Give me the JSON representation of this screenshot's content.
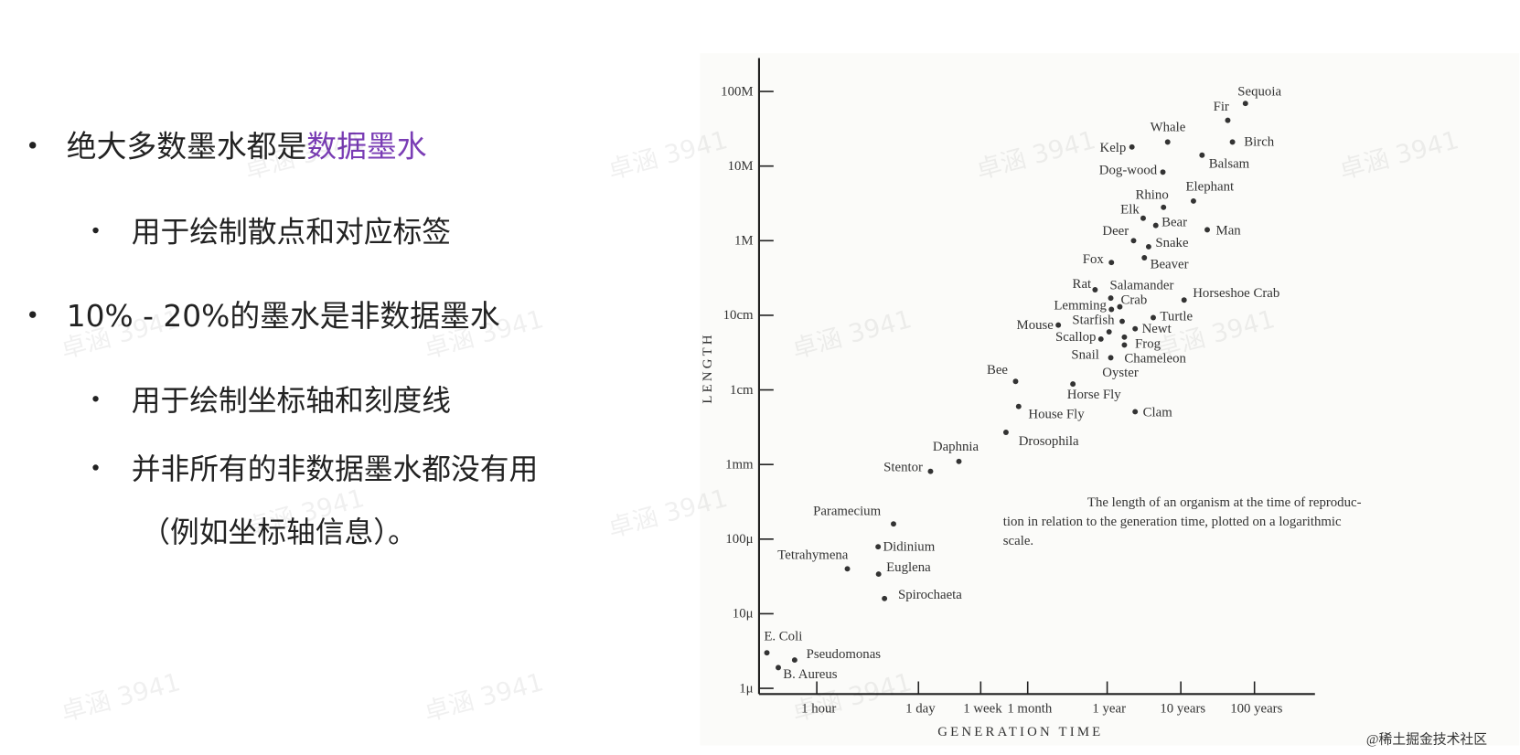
{
  "bullets": [
    {
      "text": "绝大多数墨水都是",
      "highlight": "数据墨水",
      "sub": [
        [
          "用于绘制散点和对应标签"
        ]
      ]
    },
    {
      "text": "10% - 20%的墨水是非数据墨水",
      "sub": [
        [
          "用于绘制坐标轴和刻度线"
        ],
        [
          "并非所有的非数据墨水都没有用",
          "（例如坐标轴信息）。"
        ]
      ]
    }
  ],
  "chart_data": {
    "type": "scatter",
    "y_label": "LENGTH",
    "x_label": "GENERATION TIME",
    "caption": [
      "The length of an organism at the time of reproduc-",
      "tion in relation to the generation time, plotted on a logarithmic",
      "scale."
    ],
    "log_x": true,
    "log_y": true,
    "color": "#333333",
    "xlim": [
      0.15,
      5800000
    ],
    "ylim": [
      8.4e-07,
      280
    ],
    "xticks": [
      {
        "value": 1,
        "label": "1 hour"
      },
      {
        "value": 24,
        "label": "1 day"
      },
      {
        "value": 168,
        "label": "1 week"
      },
      {
        "value": 730,
        "label": "1 month"
      },
      {
        "value": 8760,
        "label": "1 year"
      },
      {
        "value": 87600,
        "label": "10 years"
      },
      {
        "value": 876000,
        "label": "100 years"
      }
    ],
    "yticks": [
      {
        "value": 1e-06,
        "label": "1μ"
      },
      {
        "value": 1e-05,
        "label": "10μ"
      },
      {
        "value": 0.0001,
        "label": "100μ"
      },
      {
        "value": 0.001,
        "label": "1mm"
      },
      {
        "value": 0.01,
        "label": "1cm"
      },
      {
        "value": 0.1,
        "label": "10cm"
      },
      {
        "value": 1,
        "label": "1M"
      },
      {
        "value": 10,
        "label": "10M"
      },
      {
        "value": 100,
        "label": "100M"
      }
    ],
    "labels": [
      "Sequoia",
      "Fir",
      "Birch",
      "Whale",
      "Kelp",
      "Balsam",
      "Dog-wood",
      "Elephant",
      "Rhino",
      "Elk",
      "Bear",
      "Man",
      "Deer",
      "Snake",
      "Fox",
      "Beaver",
      "Rat",
      "Salamander",
      "Horseshoe Crab",
      "Crab",
      "Lemming",
      "Turtle",
      "Mouse",
      "Starfish",
      "Newt",
      "Scallop",
      "Frog",
      "Chameleon",
      "Snail",
      "Oyster",
      "Bee",
      "Horse Fly",
      "House Fly",
      "Clam",
      "Drosophila",
      "Daphnia",
      "Stentor",
      "Paramecium",
      "Didinium",
      "Tetrahymena",
      "Euglena",
      "Spirochaeta",
      "E. Coli",
      "Pseudomonas",
      "B. Aureus"
    ],
    "x": [
      660000,
      380000,
      440000,
      58000,
      19000,
      170000,
      50000,
      130000,
      51000,
      27000,
      40000,
      200000,
      20000,
      32000,
      10000,
      28000,
      6000,
      9800,
      97000,
      13000,
      10000,
      37000,
      1900,
      14000,
      21000,
      7200,
      15000,
      15000,
      9800,
      9300,
      500,
      3000,
      550,
      21000,
      370,
      85,
      35,
      11,
      6.8,
      2.6,
      6.9,
      8.3,
      0.21,
      0.5,
      0.3
    ],
    "y": [
      69,
      41,
      21,
      21,
      18,
      14,
      8.3,
      3.4,
      2.8,
      2.0,
      1.6,
      1.4,
      1.0,
      0.83,
      0.51,
      0.59,
      0.22,
      0.17,
      0.16,
      0.13,
      0.12,
      0.093,
      0.074,
      0.083,
      0.066,
      0.048,
      0.051,
      0.04,
      0.027,
      0.06,
      0.013,
      0.012,
      0.006,
      0.0051,
      0.0027,
      0.0011,
      0.00081,
      0.00016,
      7.9e-05,
      4e-05,
      3.4e-05,
      1.6e-05,
      3e-06,
      2.4e-06,
      1.9e-06
    ]
  },
  "watermark": "卓涵 3941",
  "footer": "@稀土掘金技术社区"
}
